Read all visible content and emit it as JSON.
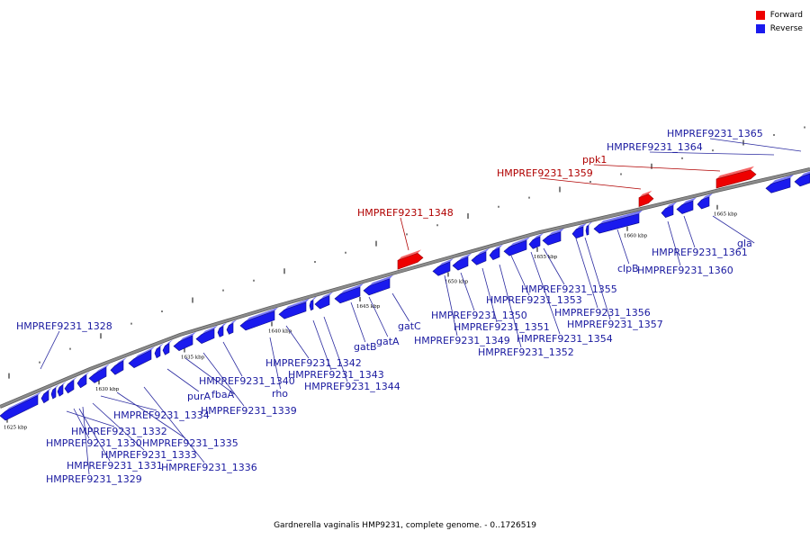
{
  "legend": {
    "forward_label": "Forward",
    "reverse_label": "Reverse",
    "forward_color": "#ee0000",
    "reverse_color": "#1a1aee"
  },
  "caption": "Gardnerella vaginalis HMP9231, complete genome. - 0..1726519",
  "colors": {
    "backbone": "#8c8c8c",
    "forward": "#ee0000",
    "reverse": "#1a1aee",
    "forward_label": "#b00000",
    "reverse_label": "#1a1aa0",
    "leader_forward": "#b00000",
    "leader_reverse": "#2a2aa0"
  },
  "tick_labels": [
    "1625 kbp",
    "1630 kbp",
    "1635 kbp",
    "1640 kbp",
    "1645 kbp",
    "1650 kbp",
    "1655 kbp",
    "1660 kbp",
    "1665 kbp"
  ],
  "gene_labels": [
    {
      "text": "HMPREF9231_1328",
      "strand": "reverse"
    },
    {
      "text": "HMPREF9231_1329",
      "strand": "reverse"
    },
    {
      "text": "HMPREF9231_1330",
      "strand": "reverse"
    },
    {
      "text": "HMPREF9231_1331",
      "strand": "reverse"
    },
    {
      "text": "HMPREF9231_1332",
      "strand": "reverse"
    },
    {
      "text": "HMPREF9231_1333",
      "strand": "reverse"
    },
    {
      "text": "HMPREF9231_1334",
      "strand": "reverse"
    },
    {
      "text": "HMPREF9231_1335",
      "strand": "reverse"
    },
    {
      "text": "HMPREF9231_1336",
      "strand": "reverse"
    },
    {
      "text": "purA",
      "strand": "reverse"
    },
    {
      "text": "fbaA",
      "strand": "reverse"
    },
    {
      "text": "HMPREF9231_1339",
      "strand": "reverse"
    },
    {
      "text": "HMPREF9231_1340",
      "strand": "reverse"
    },
    {
      "text": "rho",
      "strand": "reverse"
    },
    {
      "text": "HMPREF9231_1342",
      "strand": "reverse"
    },
    {
      "text": "HMPREF9231_1343",
      "strand": "reverse"
    },
    {
      "text": "HMPREF9231_1344",
      "strand": "reverse"
    },
    {
      "text": "gatB",
      "strand": "reverse"
    },
    {
      "text": "gatA",
      "strand": "reverse"
    },
    {
      "text": "gatC",
      "strand": "reverse"
    },
    {
      "text": "HMPREF9231_1348",
      "strand": "forward"
    },
    {
      "text": "HMPREF9231_1349",
      "strand": "reverse"
    },
    {
      "text": "HMPREF9231_1350",
      "strand": "reverse"
    },
    {
      "text": "HMPREF9231_1351",
      "strand": "reverse"
    },
    {
      "text": "HMPREF9231_1352",
      "strand": "reverse"
    },
    {
      "text": "HMPREF9231_1353",
      "strand": "reverse"
    },
    {
      "text": "HMPREF9231_1354",
      "strand": "reverse"
    },
    {
      "text": "HMPREF9231_1355",
      "strand": "reverse"
    },
    {
      "text": "HMPREF9231_1356",
      "strand": "reverse"
    },
    {
      "text": "HMPREF9231_1357",
      "strand": "reverse"
    },
    {
      "text": "clpB",
      "strand": "reverse"
    },
    {
      "text": "HMPREF9231_1359",
      "strand": "forward"
    },
    {
      "text": "HMPREF9231_1360",
      "strand": "reverse"
    },
    {
      "text": "HMPREF9231_1361",
      "strand": "reverse"
    },
    {
      "text": "gla",
      "strand": "reverse"
    },
    {
      "text": "ppk1",
      "strand": "forward"
    },
    {
      "text": "HMPREF9231_1364",
      "strand": "reverse"
    },
    {
      "text": "HMPREF9231_1365",
      "strand": "reverse"
    }
  ]
}
